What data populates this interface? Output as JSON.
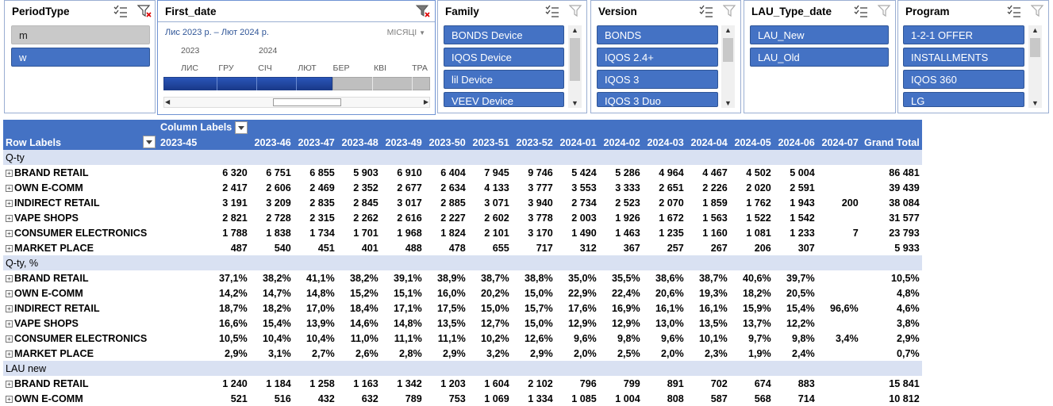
{
  "slicers": {
    "period_type": {
      "title": "PeriodType",
      "items": [
        "m",
        "w"
      ]
    },
    "timeline": {
      "title": "First_date",
      "range": "Лис 2023 р. – Лют 2024 р.",
      "level": "МІСЯЦІ",
      "years": [
        "2023",
        "2024"
      ],
      "months": [
        "ЛИС",
        "ГРУ",
        "СІЧ",
        "ЛЮТ",
        "БЕР",
        "КВІ",
        "ТРА"
      ]
    },
    "family": {
      "title": "Family",
      "items": [
        "BONDS Device",
        "IQOS Device",
        "lil Device",
        "VEEV Device"
      ]
    },
    "version": {
      "title": "Version",
      "items": [
        "BONDS",
        "IQOS 2.4+",
        "IQOS 3",
        "IQOS 3 Duo"
      ]
    },
    "lau_type": {
      "title": "LAU_Type_date",
      "items": [
        "LAU_New",
        "LAU_Old"
      ]
    },
    "program": {
      "title": "Program",
      "items": [
        "1-2-1 OFFER",
        "INSTALLMENTS",
        "IQOS 360",
        "LG"
      ]
    }
  },
  "pivot": {
    "column_labels": "Column Labels",
    "row_labels": "Row Labels",
    "columns": [
      "2023-45",
      "2023-46",
      "2023-47",
      "2023-48",
      "2023-49",
      "2023-50",
      "2023-51",
      "2023-52",
      "2024-01",
      "2024-02",
      "2024-03",
      "2024-04",
      "2024-05",
      "2024-06",
      "2024-07",
      "Grand Total"
    ],
    "sections": [
      {
        "name": "Q-ty",
        "rows": [
          {
            "label": "BRAND RETAIL",
            "values": [
              "6 320",
              "6 751",
              "6 855",
              "5 903",
              "6 910",
              "6 404",
              "7 945",
              "9 746",
              "5 424",
              "5 286",
              "4 964",
              "4 467",
              "4 502",
              "5 004",
              "",
              "86 481"
            ]
          },
          {
            "label": "OWN E-COMM",
            "values": [
              "2 417",
              "2 606",
              "2 469",
              "2 352",
              "2 677",
              "2 634",
              "4 133",
              "3 777",
              "3 553",
              "3 333",
              "2 651",
              "2 226",
              "2 020",
              "2 591",
              "",
              "39 439"
            ]
          },
          {
            "label": "INDIRECT RETAIL",
            "values": [
              "3 191",
              "3 209",
              "2 835",
              "2 845",
              "3 017",
              "2 885",
              "3 071",
              "3 940",
              "2 734",
              "2 523",
              "2 070",
              "1 859",
              "1 762",
              "1 943",
              "200",
              "38 084"
            ]
          },
          {
            "label": "VAPE SHOPS",
            "values": [
              "2 821",
              "2 728",
              "2 315",
              "2 262",
              "2 616",
              "2 227",
              "2 602",
              "3 778",
              "2 003",
              "1 926",
              "1 672",
              "1 563",
              "1 522",
              "1 542",
              "",
              "31 577"
            ]
          },
          {
            "label": "CONSUMER ELECTRONICS",
            "values": [
              "1 788",
              "1 838",
              "1 734",
              "1 701",
              "1 968",
              "1 824",
              "2 101",
              "3 170",
              "1 490",
              "1 463",
              "1 235",
              "1 160",
              "1 081",
              "1 233",
              "7",
              "23 793"
            ]
          },
          {
            "label": "MARKET PLACE",
            "values": [
              "487",
              "540",
              "451",
              "401",
              "488",
              "478",
              "655",
              "717",
              "312",
              "367",
              "257",
              "267",
              "206",
              "307",
              "",
              "5 933"
            ]
          }
        ]
      },
      {
        "name": "Q-ty, %",
        "rows": [
          {
            "label": "BRAND RETAIL",
            "values": [
              "37,1%",
              "38,2%",
              "41,1%",
              "38,2%",
              "39,1%",
              "38,9%",
              "38,7%",
              "38,8%",
              "35,0%",
              "35,5%",
              "38,6%",
              "38,7%",
              "40,6%",
              "39,7%",
              "",
              "10,5%"
            ]
          },
          {
            "label": "OWN E-COMM",
            "values": [
              "14,2%",
              "14,7%",
              "14,8%",
              "15,2%",
              "15,1%",
              "16,0%",
              "20,2%",
              "15,0%",
              "22,9%",
              "22,4%",
              "20,6%",
              "19,3%",
              "18,2%",
              "20,5%",
              "",
              "4,8%"
            ]
          },
          {
            "label": "INDIRECT RETAIL",
            "values": [
              "18,7%",
              "18,2%",
              "17,0%",
              "18,4%",
              "17,1%",
              "17,5%",
              "15,0%",
              "15,7%",
              "17,6%",
              "16,9%",
              "16,1%",
              "16,1%",
              "15,9%",
              "15,4%",
              "96,6%",
              "4,6%"
            ]
          },
          {
            "label": "VAPE SHOPS",
            "values": [
              "16,6%",
              "15,4%",
              "13,9%",
              "14,6%",
              "14,8%",
              "13,5%",
              "12,7%",
              "15,0%",
              "12,9%",
              "12,9%",
              "13,0%",
              "13,5%",
              "13,7%",
              "12,2%",
              "",
              "3,8%"
            ]
          },
          {
            "label": "CONSUMER ELECTRONICS",
            "values": [
              "10,5%",
              "10,4%",
              "10,4%",
              "11,0%",
              "11,1%",
              "11,1%",
              "10,2%",
              "12,6%",
              "9,6%",
              "9,8%",
              "9,6%",
              "10,1%",
              "9,7%",
              "9,8%",
              "3,4%",
              "2,9%"
            ]
          },
          {
            "label": "MARKET PLACE",
            "values": [
              "2,9%",
              "3,1%",
              "2,7%",
              "2,6%",
              "2,8%",
              "2,9%",
              "3,2%",
              "2,9%",
              "2,0%",
              "2,5%",
              "2,0%",
              "2,3%",
              "1,9%",
              "2,4%",
              "",
              "0,7%"
            ]
          }
        ]
      },
      {
        "name": "LAU new",
        "rows": [
          {
            "label": "BRAND RETAIL",
            "values": [
              "1 240",
              "1 184",
              "1 258",
              "1 163",
              "1 342",
              "1 203",
              "1 604",
              "2 102",
              "796",
              "799",
              "891",
              "702",
              "674",
              "883",
              "",
              "15 841"
            ]
          },
          {
            "label": "OWN E-COMM",
            "values": [
              "521",
              "516",
              "432",
              "632",
              "789",
              "753",
              "1 069",
              "1 334",
              "1 085",
              "1 004",
              "808",
              "587",
              "568",
              "714",
              "",
              "10 812"
            ]
          }
        ]
      }
    ]
  }
}
